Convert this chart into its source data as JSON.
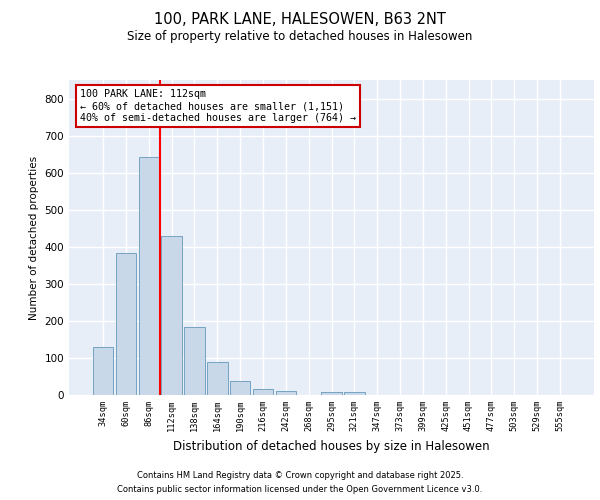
{
  "title1": "100, PARK LANE, HALESOWEN, B63 2NT",
  "title2": "Size of property relative to detached houses in Halesowen",
  "xlabel": "Distribution of detached houses by size in Halesowen",
  "ylabel": "Number of detached properties",
  "bar_color": "#c8d8e8",
  "bar_edge_color": "#6699bb",
  "categories": [
    "34sqm",
    "60sqm",
    "86sqm",
    "112sqm",
    "138sqm",
    "164sqm",
    "190sqm",
    "216sqm",
    "242sqm",
    "268sqm",
    "295sqm",
    "321sqm",
    "347sqm",
    "373sqm",
    "399sqm",
    "425sqm",
    "451sqm",
    "477sqm",
    "503sqm",
    "529sqm",
    "555sqm"
  ],
  "values": [
    130,
    383,
    643,
    430,
    183,
    90,
    38,
    17,
    10,
    0,
    7,
    7,
    0,
    0,
    0,
    0,
    0,
    0,
    0,
    0,
    0
  ],
  "ylim": [
    0,
    850
  ],
  "yticks": [
    0,
    100,
    200,
    300,
    400,
    500,
    600,
    700,
    800
  ],
  "red_line_index": 3,
  "annotation_text": "100 PARK LANE: 112sqm\n← 60% of detached houses are smaller (1,151)\n40% of semi-detached houses are larger (764) →",
  "annotation_box_color": "#ffffff",
  "annotation_box_edge": "#cc0000",
  "footer_line1": "Contains HM Land Registry data © Crown copyright and database right 2025.",
  "footer_line2": "Contains public sector information licensed under the Open Government Licence v3.0.",
  "background_color": "#e8eef8",
  "grid_color": "#ffffff",
  "fig_bg": "#ffffff"
}
